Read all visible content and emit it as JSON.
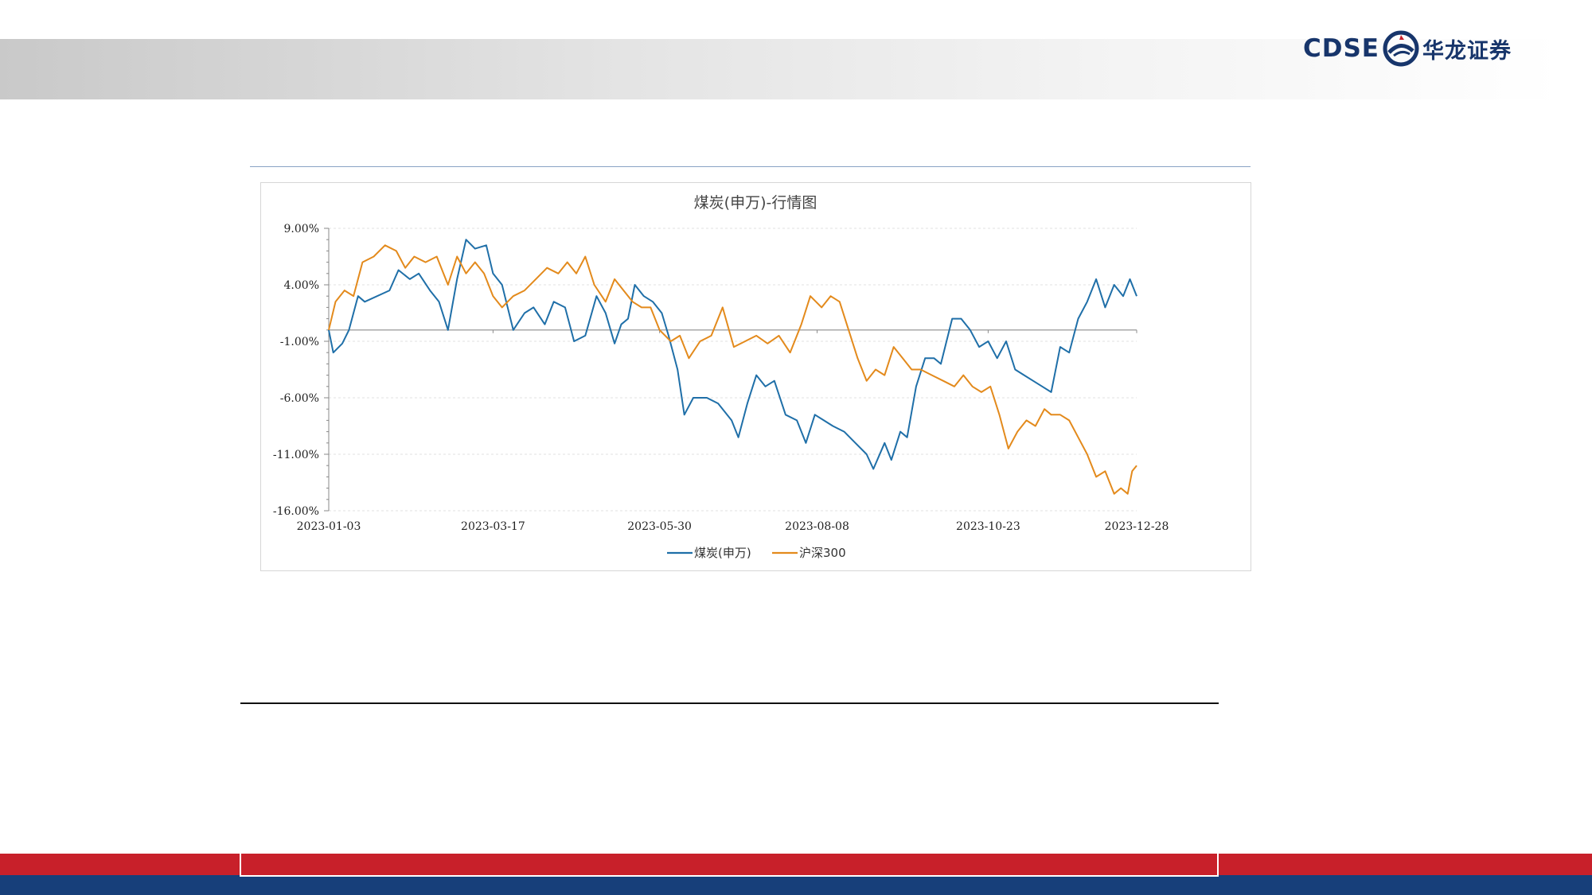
{
  "brand": {
    "name_en": "CDSE",
    "name_cn": "华龙证券",
    "colors": {
      "navy": "#17356b",
      "red": "#c8202a",
      "blue_bar": "#173f7a"
    }
  },
  "chart_data": {
    "type": "line",
    "title": "煤炭(申万)-行情图",
    "xlabel": "",
    "ylabel": "",
    "ylim": [
      -16,
      9
    ],
    "y_ticks": [
      9,
      4,
      -1,
      -6,
      -11,
      -16
    ],
    "y_tick_labels": [
      "9.00%",
      "4.00%",
      "-1.00%",
      "-6.00%",
      "-11.00%",
      "-16.00%"
    ],
    "x_ticks": [
      "2023-01-03",
      "2023-03-17",
      "2023-05-30",
      "2023-08-08",
      "2023-10-23",
      "2023-12-28"
    ],
    "x_range": [
      "2023-01-03",
      "2023-12-28"
    ],
    "grid": "horizontal dashed",
    "legend_position": "bottom",
    "series": [
      {
        "name": "煤炭(申万)",
        "color": "#1f6fa8",
        "points": [
          [
            "2023-01-03",
            0.0
          ],
          [
            "2023-01-05",
            -2.0
          ],
          [
            "2023-01-09",
            -1.2
          ],
          [
            "2023-01-12",
            0.0
          ],
          [
            "2023-01-16",
            3.0
          ],
          [
            "2023-01-19",
            2.5
          ],
          [
            "2023-01-30",
            3.5
          ],
          [
            "2023-02-03",
            5.3
          ],
          [
            "2023-02-08",
            4.5
          ],
          [
            "2023-02-12",
            5.0
          ],
          [
            "2023-02-17",
            3.5
          ],
          [
            "2023-02-21",
            2.5
          ],
          [
            "2023-02-25",
            0.0
          ],
          [
            "2023-03-01",
            4.5
          ],
          [
            "2023-03-05",
            8.0
          ],
          [
            "2023-03-09",
            7.2
          ],
          [
            "2023-03-14",
            7.5
          ],
          [
            "2023-03-17",
            5.0
          ],
          [
            "2023-03-21",
            4.0
          ],
          [
            "2023-03-26",
            0.0
          ],
          [
            "2023-03-31",
            1.5
          ],
          [
            "2023-04-04",
            2.0
          ],
          [
            "2023-04-09",
            0.5
          ],
          [
            "2023-04-13",
            2.5
          ],
          [
            "2023-04-18",
            2.0
          ],
          [
            "2023-04-22",
            -1.0
          ],
          [
            "2023-04-27",
            -0.5
          ],
          [
            "2023-05-02",
            3.0
          ],
          [
            "2023-05-06",
            1.5
          ],
          [
            "2023-05-10",
            -1.2
          ],
          [
            "2023-05-13",
            0.5
          ],
          [
            "2023-05-16",
            1.0
          ],
          [
            "2023-05-19",
            4.0
          ],
          [
            "2023-05-23",
            3.0
          ],
          [
            "2023-05-27",
            2.5
          ],
          [
            "2023-05-31",
            1.5
          ],
          [
            "2023-06-03",
            -0.5
          ],
          [
            "2023-06-07",
            -3.5
          ],
          [
            "2023-06-10",
            -7.5
          ],
          [
            "2023-06-14",
            -6.0
          ],
          [
            "2023-06-20",
            -6.0
          ],
          [
            "2023-06-25",
            -6.5
          ],
          [
            "2023-07-01",
            -8.0
          ],
          [
            "2023-07-04",
            -9.5
          ],
          [
            "2023-07-08",
            -6.5
          ],
          [
            "2023-07-12",
            -4.0
          ],
          [
            "2023-07-16",
            -5.0
          ],
          [
            "2023-07-20",
            -4.5
          ],
          [
            "2023-07-25",
            -7.5
          ],
          [
            "2023-07-30",
            -8.0
          ],
          [
            "2023-08-03",
            -10.0
          ],
          [
            "2023-08-07",
            -7.5
          ],
          [
            "2023-08-11",
            -8.0
          ],
          [
            "2023-08-15",
            -8.5
          ],
          [
            "2023-08-20",
            -9.0
          ],
          [
            "2023-08-25",
            -10.0
          ],
          [
            "2023-08-30",
            -11.0
          ],
          [
            "2023-09-02",
            -12.3
          ],
          [
            "2023-09-07",
            -10.0
          ],
          [
            "2023-09-10",
            -11.5
          ],
          [
            "2023-09-14",
            -9.0
          ],
          [
            "2023-09-17",
            -9.5
          ],
          [
            "2023-09-21",
            -5.0
          ],
          [
            "2023-09-25",
            -2.5
          ],
          [
            "2023-09-29",
            -2.5
          ],
          [
            "2023-10-02",
            -3.0
          ],
          [
            "2023-10-07",
            1.0
          ],
          [
            "2023-10-11",
            1.0
          ],
          [
            "2023-10-15",
            0.0
          ],
          [
            "2023-10-19",
            -1.5
          ],
          [
            "2023-10-23",
            -1.0
          ],
          [
            "2023-10-27",
            -2.5
          ],
          [
            "2023-10-31",
            -1.0
          ],
          [
            "2023-11-04",
            -3.5
          ],
          [
            "2023-11-08",
            -4.0
          ],
          [
            "2023-11-12",
            -4.5
          ],
          [
            "2023-11-16",
            -5.0
          ],
          [
            "2023-11-20",
            -5.5
          ],
          [
            "2023-11-24",
            -1.5
          ],
          [
            "2023-11-28",
            -2.0
          ],
          [
            "2023-12-02",
            1.0
          ],
          [
            "2023-12-06",
            2.5
          ],
          [
            "2023-12-10",
            4.5
          ],
          [
            "2023-12-14",
            2.0
          ],
          [
            "2023-12-18",
            4.0
          ],
          [
            "2023-12-22",
            3.0
          ],
          [
            "2023-12-25",
            4.5
          ],
          [
            "2023-12-28",
            3.0
          ]
        ]
      },
      {
        "name": "沪深300",
        "color": "#e38a1c",
        "points": [
          [
            "2023-01-03",
            0.0
          ],
          [
            "2023-01-06",
            2.5
          ],
          [
            "2023-01-10",
            3.5
          ],
          [
            "2023-01-14",
            3.0
          ],
          [
            "2023-01-18",
            6.0
          ],
          [
            "2023-01-23",
            6.5
          ],
          [
            "2023-01-28",
            7.5
          ],
          [
            "2023-02-02",
            7.0
          ],
          [
            "2023-02-06",
            5.5
          ],
          [
            "2023-02-10",
            6.5
          ],
          [
            "2023-02-15",
            6.0
          ],
          [
            "2023-02-20",
            6.5
          ],
          [
            "2023-02-25",
            4.0
          ],
          [
            "2023-03-01",
            6.5
          ],
          [
            "2023-03-05",
            5.0
          ],
          [
            "2023-03-09",
            6.0
          ],
          [
            "2023-03-13",
            5.0
          ],
          [
            "2023-03-17",
            3.0
          ],
          [
            "2023-03-21",
            2.0
          ],
          [
            "2023-03-26",
            3.0
          ],
          [
            "2023-03-31",
            3.5
          ],
          [
            "2023-04-05",
            4.5
          ],
          [
            "2023-04-10",
            5.5
          ],
          [
            "2023-04-15",
            5.0
          ],
          [
            "2023-04-19",
            6.0
          ],
          [
            "2023-04-23",
            5.0
          ],
          [
            "2023-04-27",
            6.5
          ],
          [
            "2023-05-01",
            4.0
          ],
          [
            "2023-05-06",
            2.5
          ],
          [
            "2023-05-10",
            4.5
          ],
          [
            "2023-05-14",
            3.5
          ],
          [
            "2023-05-18",
            2.5
          ],
          [
            "2023-05-22",
            2.0
          ],
          [
            "2023-05-26",
            2.0
          ],
          [
            "2023-05-30",
            0.0
          ],
          [
            "2023-06-04",
            -1.0
          ],
          [
            "2023-06-08",
            -0.5
          ],
          [
            "2023-06-12",
            -2.5
          ],
          [
            "2023-06-17",
            -1.0
          ],
          [
            "2023-06-22",
            -0.5
          ],
          [
            "2023-06-27",
            2.0
          ],
          [
            "2023-07-02",
            -1.5
          ],
          [
            "2023-07-07",
            -1.0
          ],
          [
            "2023-07-12",
            -0.5
          ],
          [
            "2023-07-17",
            -1.2
          ],
          [
            "2023-07-22",
            -0.5
          ],
          [
            "2023-07-27",
            -2.0
          ],
          [
            "2023-08-01",
            0.5
          ],
          [
            "2023-08-05",
            3.0
          ],
          [
            "2023-08-10",
            2.0
          ],
          [
            "2023-08-14",
            3.0
          ],
          [
            "2023-08-18",
            2.5
          ],
          [
            "2023-08-22",
            0.0
          ],
          [
            "2023-08-26",
            -2.5
          ],
          [
            "2023-08-30",
            -4.5
          ],
          [
            "2023-09-03",
            -3.5
          ],
          [
            "2023-09-07",
            -4.0
          ],
          [
            "2023-09-11",
            -1.5
          ],
          [
            "2023-09-15",
            -2.5
          ],
          [
            "2023-09-19",
            -3.5
          ],
          [
            "2023-09-23",
            -3.5
          ],
          [
            "2023-09-28",
            -4.0
          ],
          [
            "2023-10-03",
            -4.5
          ],
          [
            "2023-10-08",
            -5.0
          ],
          [
            "2023-10-12",
            -4.0
          ],
          [
            "2023-10-16",
            -5.0
          ],
          [
            "2023-10-20",
            -5.5
          ],
          [
            "2023-10-24",
            -5.0
          ],
          [
            "2023-10-28",
            -7.5
          ],
          [
            "2023-11-01",
            -10.5
          ],
          [
            "2023-11-05",
            -9.0
          ],
          [
            "2023-11-09",
            -8.0
          ],
          [
            "2023-11-13",
            -8.5
          ],
          [
            "2023-11-17",
            -7.0
          ],
          [
            "2023-11-20",
            -7.5
          ],
          [
            "2023-11-24",
            -7.5
          ],
          [
            "2023-11-28",
            -8.0
          ],
          [
            "2023-12-02",
            -9.5
          ],
          [
            "2023-12-06",
            -11.0
          ],
          [
            "2023-12-10",
            -13.0
          ],
          [
            "2023-12-14",
            -12.5
          ],
          [
            "2023-12-18",
            -14.5
          ],
          [
            "2023-12-21",
            -14.0
          ],
          [
            "2023-12-24",
            -14.5
          ],
          [
            "2023-12-26",
            -12.5
          ],
          [
            "2023-12-28",
            -12.0
          ]
        ]
      }
    ]
  }
}
